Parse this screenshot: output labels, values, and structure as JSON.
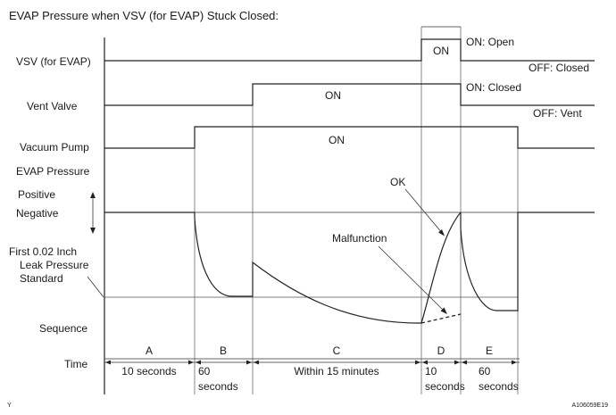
{
  "title": "EVAP Pressure when VSV (for EVAP) Stuck Closed:",
  "rows": {
    "vsv": "VSV (for EVAP)",
    "vent": "Vent Valve",
    "pump": "Vacuum Pump",
    "evap": "EVAP Pressure",
    "positive": "Positive",
    "negative": "Negative",
    "leak1": "First 0.02 Inch",
    "leak2": "Leak Pressure",
    "leak3": "Standard",
    "sequence": "Sequence",
    "time": "Time"
  },
  "states": {
    "vsv_on": "ON",
    "vsv_on_note": "ON: Open",
    "vsv_off_note": "OFF: Closed",
    "vent_on": "ON",
    "vent_on_note": "ON: Closed",
    "vent_off_note": "OFF: Vent",
    "pump_on": "ON"
  },
  "annotations": {
    "ok": "OK",
    "malfunction": "Malfunction"
  },
  "sequence": {
    "a": "A",
    "b": "B",
    "c": "C",
    "d": "D",
    "e": "E"
  },
  "durations": {
    "a": "10 seconds",
    "b1": "60",
    "b2": "seconds",
    "c": "Within 15 minutes",
    "d1": "10",
    "d2": "seconds",
    "e1": "60",
    "e2": "seconds"
  },
  "footer": {
    "left": "Y",
    "code": "A106059E19"
  }
}
